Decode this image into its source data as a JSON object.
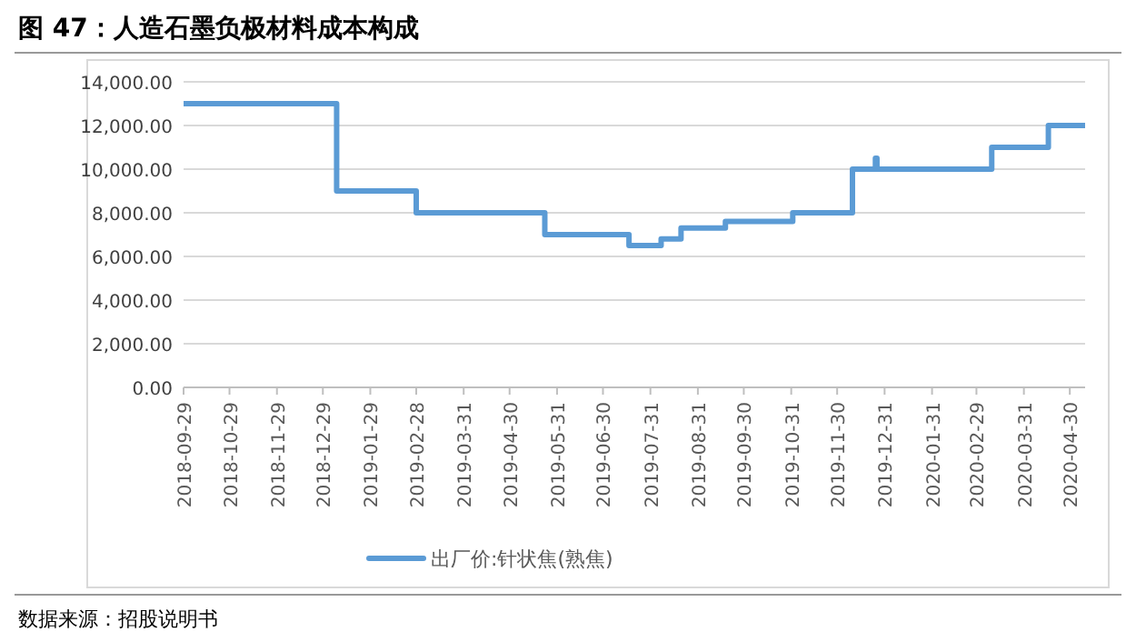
{
  "chart_data": {
    "type": "step",
    "title": "图 47：人造石墨负极材料成本构成",
    "x": [
      "2018-09-29",
      "2019-01-07",
      "2019-02-28",
      "2019-05-23",
      "2019-07-17",
      "2019-08-07",
      "2019-08-20",
      "2019-09-18",
      "2019-11-01",
      "2019-12-10",
      "2019-12-25",
      "2019-12-26",
      "2020-03-10",
      "2020-04-16",
      "2020-05-10"
    ],
    "series": [
      {
        "name": "出厂价:针状焦(熟焦)",
        "color": "#5b9bd5",
        "values": [
          13000,
          9000,
          8000,
          7000,
          6500,
          6800,
          7300,
          7600,
          8000,
          10000,
          10500,
          10000,
          11000,
          12000,
          12000
        ]
      }
    ],
    "xlim": [
      "2018-09-29",
      "2020-05-10"
    ],
    "xticks": [
      "2018-09-29",
      "2018-10-29",
      "2018-11-29",
      "2018-12-29",
      "2019-01-29",
      "2019-02-28",
      "2019-03-31",
      "2019-04-30",
      "2019-05-31",
      "2019-06-30",
      "2019-07-31",
      "2019-08-31",
      "2019-09-30",
      "2019-10-31",
      "2019-11-30",
      "2019-12-31",
      "2020-01-31",
      "2020-02-29",
      "2020-03-31",
      "2020-04-30"
    ],
    "ylim": [
      0,
      14000
    ],
    "yticks": [
      {
        "value": 0,
        "label": "0.00"
      },
      {
        "value": 2000,
        "label": "2,000.00"
      },
      {
        "value": 4000,
        "label": "4,000.00"
      },
      {
        "value": 6000,
        "label": "6,000.00"
      },
      {
        "value": 8000,
        "label": "8,000.00"
      },
      {
        "value": 10000,
        "label": "10,000.00"
      },
      {
        "value": 12000,
        "label": "12,000.00"
      },
      {
        "value": 14000,
        "label": "14,000.00"
      }
    ],
    "grid": "y",
    "legend": "bottom",
    "annotations": [
      "数据来源：招股说明书"
    ]
  }
}
